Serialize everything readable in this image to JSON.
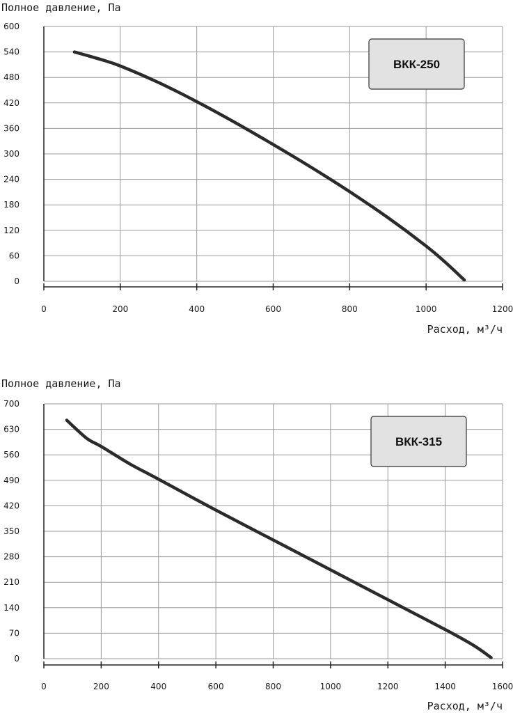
{
  "chart_data": [
    {
      "type": "line",
      "model_label": "ВКК-250",
      "ylabel": "Полное давление, Па",
      "xlabel": "Расход, м³/ч",
      "xlim": [
        0,
        1200
      ],
      "ylim": [
        0,
        600
      ],
      "x_ticks": [
        0,
        200,
        400,
        600,
        800,
        1000,
        1200
      ],
      "y_ticks": [
        0,
        60,
        120,
        180,
        240,
        300,
        360,
        420,
        480,
        540,
        600
      ],
      "grid": true,
      "series": [
        {
          "x": [
            80,
            150,
            200,
            300,
            400,
            500,
            600,
            700,
            800,
            900,
            1000,
            1050,
            1100
          ],
          "y": [
            540,
            522,
            507,
            468,
            423,
            374,
            322,
            268,
            211,
            150,
            83,
            45,
            3
          ]
        }
      ]
    },
    {
      "type": "line",
      "model_label": "ВКК-315",
      "ylabel": "Полное давление, Па",
      "xlabel": "Расход, м³/ч",
      "xlim": [
        0,
        1600
      ],
      "ylim": [
        0,
        700
      ],
      "x_ticks": [
        0,
        200,
        400,
        600,
        800,
        1000,
        1200,
        1400,
        1600
      ],
      "y_ticks": [
        0,
        70,
        140,
        210,
        280,
        350,
        420,
        490,
        560,
        630,
        700
      ],
      "grid": true,
      "series": [
        {
          "x": [
            80,
            150,
            200,
            300,
            400,
            600,
            800,
            1000,
            1200,
            1400,
            1500,
            1560
          ],
          "y": [
            655,
            605,
            583,
            535,
            493,
            408,
            326,
            244,
            162,
            80,
            36,
            3
          ]
        }
      ]
    }
  ],
  "colors": {
    "line": "#2b2b2b",
    "grid": "#9a9a9a",
    "label_bg": "#e2e2e2"
  }
}
